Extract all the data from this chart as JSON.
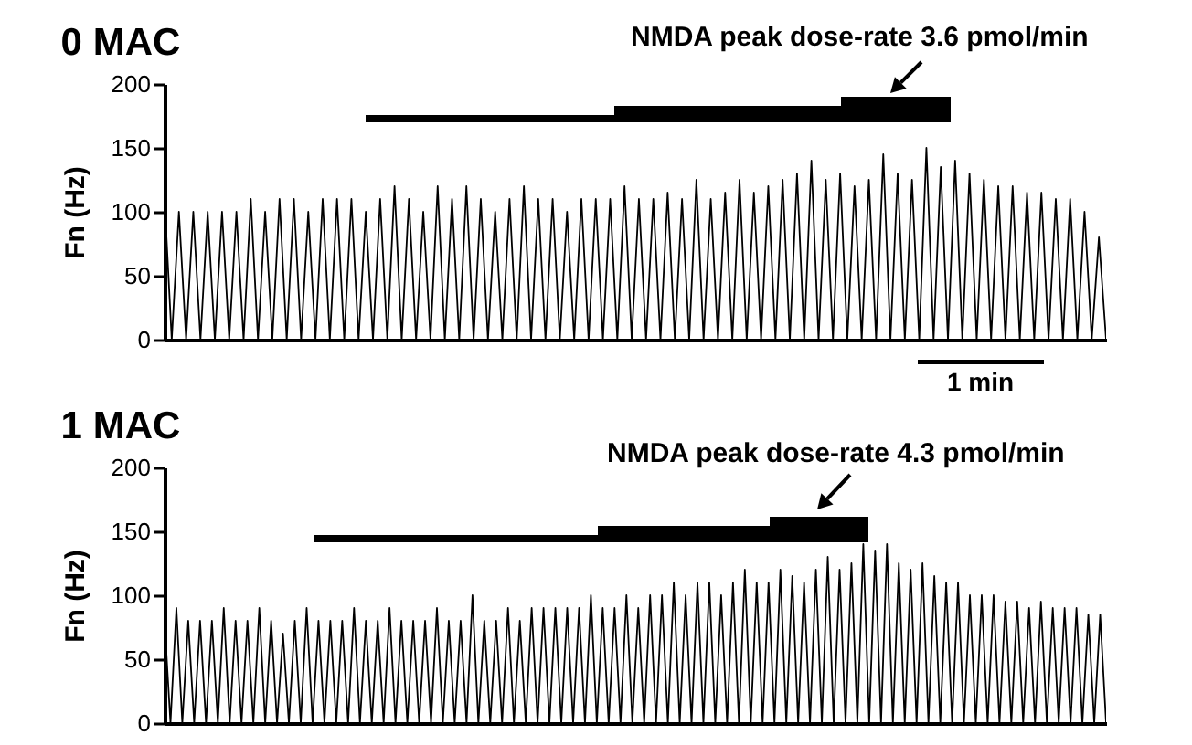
{
  "chart_data": [
    {
      "type": "line",
      "title": "0 MAC",
      "ylabel": "Fn (Hz)",
      "ylim": [
        0,
        200
      ],
      "yticks": [
        0,
        50,
        100,
        150,
        200
      ],
      "tick_labels": "y",
      "marker": "none",
      "line_style": "solid",
      "annotations": [
        "NMDA peak dose-rate 3.6 pmol/min",
        "1 min"
      ],
      "categories": [
        null,
        null,
        null,
        null,
        null,
        null,
        null,
        null,
        null,
        null,
        null,
        null,
        null,
        null,
        null,
        null,
        null,
        null,
        null,
        null,
        null,
        null,
        null,
        null,
        null,
        null,
        null,
        null,
        null,
        null,
        null,
        null,
        null,
        null,
        null,
        null,
        null,
        null,
        null,
        null,
        null,
        null,
        null,
        null,
        null,
        null,
        null,
        null,
        null,
        null,
        null,
        null,
        null,
        null,
        null,
        null,
        null,
        null,
        null,
        null,
        null,
        null,
        null,
        null,
        null,
        null,
        null,
        null,
        null,
        null,
        null,
        null,
        null,
        null,
        null,
        null,
        null,
        null,
        null,
        null,
        null,
        null,
        null,
        null,
        null,
        null,
        null,
        null,
        null,
        null,
        null,
        null,
        null,
        null,
        null,
        null,
        null,
        null,
        null,
        null,
        null,
        null,
        null,
        null,
        null,
        null,
        null,
        null,
        null,
        null,
        null,
        null,
        null,
        null,
        null,
        null,
        null,
        null,
        null,
        null,
        null,
        null,
        null,
        null,
        null,
        null,
        null,
        null,
        null,
        null,
        null,
        null
      ],
      "series": [
        {
          "color": "#000000",
          "values": [
            110,
            0,
            100,
            0,
            100,
            0,
            100,
            0,
            100,
            0,
            100,
            0,
            110,
            0,
            100,
            0,
            110,
            0,
            110,
            0,
            100,
            0,
            110,
            0,
            110,
            0,
            110,
            0,
            100,
            0,
            110,
            0,
            120,
            0,
            110,
            0,
            100,
            0,
            120,
            0,
            110,
            0,
            120,
            0,
            110,
            0,
            100,
            0,
            110,
            0,
            120,
            0,
            110,
            0,
            110,
            0,
            100,
            0,
            110,
            0,
            110,
            0,
            110,
            0,
            120,
            0,
            110,
            0,
            110,
            0,
            115,
            0,
            110,
            0,
            125,
            0,
            110,
            0,
            115,
            0,
            125,
            0,
            115,
            0,
            120,
            0,
            125,
            0,
            130,
            0,
            140,
            0,
            125,
            0,
            130,
            0,
            120,
            0,
            125,
            0,
            145,
            0,
            130,
            0,
            125,
            0,
            150,
            0,
            135,
            0,
            140,
            0,
            130,
            0,
            125,
            0,
            120,
            0,
            120,
            0,
            115,
            0,
            115,
            0,
            110,
            0,
            110,
            0,
            100,
            0,
            80,
            0
          ]
        }
      ]
    },
    {
      "type": "line",
      "title": "1 MAC",
      "ylabel": "Fn (Hz)",
      "ylim": [
        0,
        200
      ],
      "yticks": [
        0,
        50,
        100,
        150,
        200
      ],
      "tick_labels": "y",
      "marker": "none",
      "line_style": "solid",
      "annotations": [
        "NMDA peak dose-rate 4.3 pmol/min"
      ],
      "categories": [
        null,
        null,
        null,
        null,
        null,
        null,
        null,
        null,
        null,
        null,
        null,
        null,
        null,
        null,
        null,
        null,
        null,
        null,
        null,
        null,
        null,
        null,
        null,
        null,
        null,
        null,
        null,
        null,
        null,
        null,
        null,
        null,
        null,
        null,
        null,
        null,
        null,
        null,
        null,
        null,
        null,
        null,
        null,
        null,
        null,
        null,
        null,
        null,
        null,
        null,
        null,
        null,
        null,
        null,
        null,
        null,
        null,
        null,
        null,
        null,
        null,
        null,
        null,
        null,
        null,
        null,
        null,
        null,
        null,
        null,
        null,
        null,
        null,
        null,
        null,
        null,
        null,
        null,
        null,
        null,
        null,
        null,
        null,
        null,
        null,
        null,
        null,
        null,
        null,
        null,
        null,
        null,
        null,
        null,
        null,
        null,
        null,
        null,
        null,
        null,
        null,
        null,
        null,
        null,
        null,
        null,
        null,
        null,
        null,
        null,
        null,
        null,
        null,
        null,
        null,
        null,
        null,
        null,
        null,
        null,
        null,
        null,
        null,
        null,
        null,
        null,
        null,
        null,
        null,
        null,
        null,
        null,
        null,
        null,
        null,
        null,
        null,
        null,
        null,
        null,
        null,
        null,
        null,
        null,
        null,
        null,
        null,
        null,
        null,
        null,
        null,
        null,
        null,
        null,
        null,
        null,
        null,
        null,
        null,
        null
      ],
      "series": [
        {
          "color": "#000000",
          "values": [
            80,
            0,
            90,
            0,
            80,
            0,
            80,
            0,
            80,
            0,
            90,
            0,
            80,
            0,
            80,
            0,
            90,
            0,
            80,
            0,
            70,
            0,
            80,
            0,
            90,
            0,
            80,
            0,
            80,
            0,
            80,
            0,
            90,
            0,
            80,
            0,
            80,
            0,
            90,
            0,
            80,
            0,
            80,
            0,
            80,
            0,
            90,
            0,
            80,
            0,
            80,
            0,
            100,
            0,
            80,
            0,
            80,
            0,
            90,
            0,
            80,
            0,
            90,
            0,
            90,
            0,
            90,
            0,
            90,
            0,
            90,
            0,
            100,
            0,
            90,
            0,
            90,
            0,
            100,
            0,
            90,
            0,
            100,
            0,
            100,
            0,
            110,
            0,
            100,
            0,
            110,
            0,
            110,
            0,
            100,
            0,
            110,
            0,
            120,
            0,
            110,
            0,
            110,
            0,
            120,
            0,
            115,
            0,
            110,
            0,
            120,
            0,
            130,
            0,
            120,
            0,
            125,
            0,
            140,
            0,
            135,
            0,
            140,
            0,
            125,
            0,
            120,
            0,
            125,
            0,
            115,
            0,
            110,
            0,
            110,
            0,
            100,
            0,
            100,
            0,
            100,
            0,
            95,
            0,
            95,
            0,
            90,
            0,
            95,
            0,
            90,
            0,
            90,
            0,
            90,
            0,
            85,
            0,
            85,
            0
          ]
        }
      ]
    }
  ]
}
